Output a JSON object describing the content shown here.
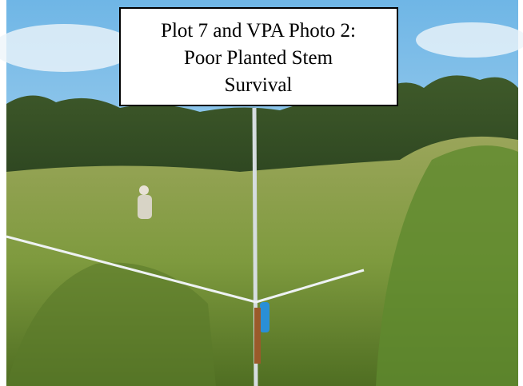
{
  "caption": {
    "lines": [
      "Plot 7 and VPA Photo 2:",
      "Poor Planted Stem",
      "Survival"
    ]
  }
}
